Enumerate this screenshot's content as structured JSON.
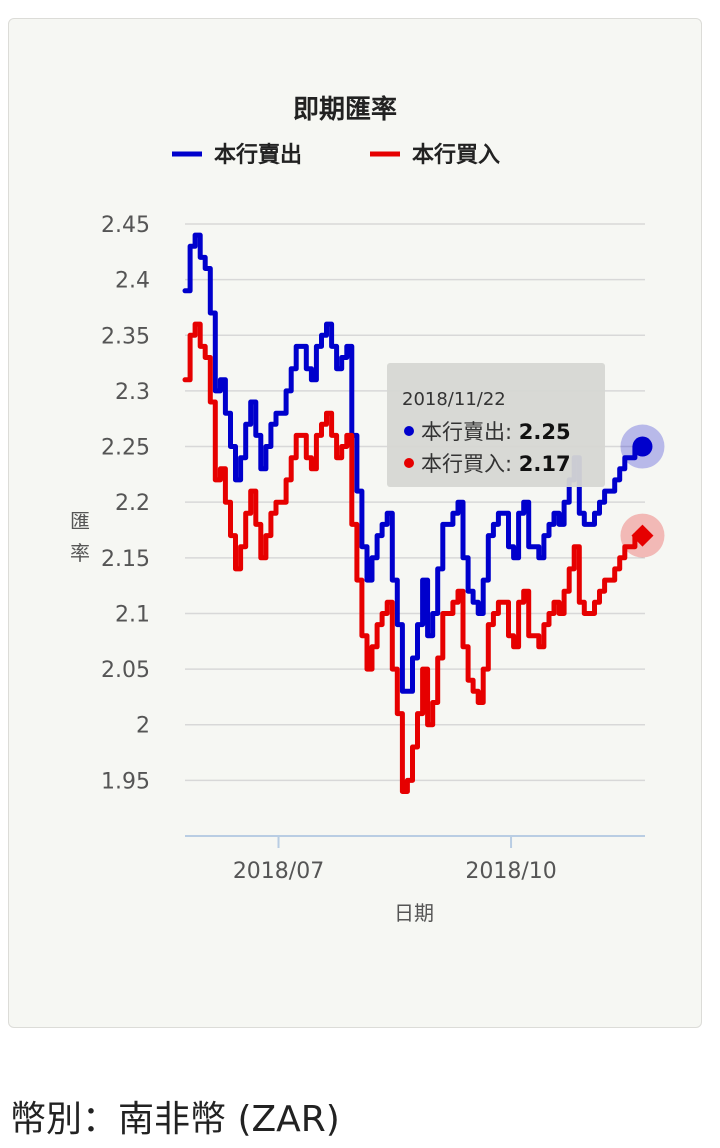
{
  "currency_label": "幣別：南非幣 (ZAR)",
  "colors": {
    "sell": "#0000cc",
    "buy": "#e60000",
    "grid": "#d8d8d8",
    "axis": "#b9cde3",
    "text": "#555555",
    "tooltip_bg": "#d9dad6"
  },
  "chart_data": {
    "type": "line",
    "title": "即期匯率",
    "xlabel": "日期",
    "ylabel": "匯率",
    "ylim": [
      1.9,
      2.45
    ],
    "yticks": [
      2.45,
      2.4,
      2.35,
      2.3,
      2.25,
      2.2,
      2.15,
      2.1,
      2.05,
      2.0,
      1.95
    ],
    "ytick_labels": [
      "2.45",
      "2.4",
      "2.35",
      "2.3",
      "2.25",
      "2.2",
      "2.15",
      "2.1",
      "2.05",
      "2",
      "1.95"
    ],
    "xlim": [
      "2018-05-25",
      "2018-11-23"
    ],
    "xticks": [
      {
        "date": "2018-07-01",
        "label": "2018/07"
      },
      {
        "date": "2018-10-01",
        "label": "2018/10"
      }
    ],
    "legend": "top",
    "grid": true,
    "series": [
      {
        "name": "本行賣出",
        "color": "#0000cc",
        "x": [
          "2018-05-25",
          "2018-05-27",
          "2018-05-29",
          "2018-05-31",
          "2018-06-02",
          "2018-06-04",
          "2018-06-06",
          "2018-06-08",
          "2018-06-10",
          "2018-06-12",
          "2018-06-14",
          "2018-06-16",
          "2018-06-18",
          "2018-06-20",
          "2018-06-22",
          "2018-06-24",
          "2018-06-26",
          "2018-06-28",
          "2018-06-30",
          "2018-07-02",
          "2018-07-04",
          "2018-07-06",
          "2018-07-08",
          "2018-07-10",
          "2018-07-12",
          "2018-07-14",
          "2018-07-16",
          "2018-07-18",
          "2018-07-20",
          "2018-07-22",
          "2018-07-24",
          "2018-07-26",
          "2018-07-28",
          "2018-07-30",
          "2018-08-01",
          "2018-08-03",
          "2018-08-05",
          "2018-08-07",
          "2018-08-09",
          "2018-08-11",
          "2018-08-13",
          "2018-08-15",
          "2018-08-17",
          "2018-08-19",
          "2018-08-21",
          "2018-08-23",
          "2018-08-25",
          "2018-08-27",
          "2018-08-29",
          "2018-08-31",
          "2018-09-02",
          "2018-09-04",
          "2018-09-06",
          "2018-09-08",
          "2018-09-10",
          "2018-09-12",
          "2018-09-14",
          "2018-09-16",
          "2018-09-18",
          "2018-09-20",
          "2018-09-22",
          "2018-09-24",
          "2018-09-26",
          "2018-09-28",
          "2018-09-30",
          "2018-10-02",
          "2018-10-04",
          "2018-10-06",
          "2018-10-08",
          "2018-10-10",
          "2018-10-12",
          "2018-10-14",
          "2018-10-16",
          "2018-10-18",
          "2018-10-20",
          "2018-10-22",
          "2018-10-24",
          "2018-10-26",
          "2018-10-28",
          "2018-10-30",
          "2018-11-01",
          "2018-11-03",
          "2018-11-05",
          "2018-11-07",
          "2018-11-09",
          "2018-11-11",
          "2018-11-13",
          "2018-11-15",
          "2018-11-17",
          "2018-11-19",
          "2018-11-22"
        ],
        "values": [
          2.39,
          2.43,
          2.44,
          2.42,
          2.41,
          2.37,
          2.3,
          2.31,
          2.28,
          2.25,
          2.22,
          2.24,
          2.27,
          2.29,
          2.26,
          2.23,
          2.25,
          2.27,
          2.28,
          2.28,
          2.3,
          2.32,
          2.34,
          2.34,
          2.32,
          2.31,
          2.34,
          2.35,
          2.36,
          2.34,
          2.32,
          2.33,
          2.34,
          2.26,
          2.21,
          2.16,
          2.13,
          2.15,
          2.17,
          2.18,
          2.19,
          2.13,
          2.09,
          2.03,
          2.03,
          2.06,
          2.09,
          2.13,
          2.08,
          2.1,
          2.14,
          2.18,
          2.18,
          2.19,
          2.2,
          2.15,
          2.12,
          2.11,
          2.1,
          2.13,
          2.17,
          2.18,
          2.19,
          2.19,
          2.16,
          2.15,
          2.19,
          2.2,
          2.16,
          2.16,
          2.15,
          2.17,
          2.18,
          2.19,
          2.18,
          2.2,
          2.22,
          2.24,
          2.19,
          2.18,
          2.18,
          2.19,
          2.2,
          2.21,
          2.21,
          2.22,
          2.23,
          2.24,
          2.24,
          2.25,
          2.25
        ]
      },
      {
        "name": "本行買入",
        "color": "#e60000",
        "x": [
          "2018-05-25",
          "2018-05-27",
          "2018-05-29",
          "2018-05-31",
          "2018-06-02",
          "2018-06-04",
          "2018-06-06",
          "2018-06-08",
          "2018-06-10",
          "2018-06-12",
          "2018-06-14",
          "2018-06-16",
          "2018-06-18",
          "2018-06-20",
          "2018-06-22",
          "2018-06-24",
          "2018-06-26",
          "2018-06-28",
          "2018-06-30",
          "2018-07-02",
          "2018-07-04",
          "2018-07-06",
          "2018-07-08",
          "2018-07-10",
          "2018-07-12",
          "2018-07-14",
          "2018-07-16",
          "2018-07-18",
          "2018-07-20",
          "2018-07-22",
          "2018-07-24",
          "2018-07-26",
          "2018-07-28",
          "2018-07-30",
          "2018-08-01",
          "2018-08-03",
          "2018-08-05",
          "2018-08-07",
          "2018-08-09",
          "2018-08-11",
          "2018-08-13",
          "2018-08-15",
          "2018-08-17",
          "2018-08-19",
          "2018-08-21",
          "2018-08-23",
          "2018-08-25",
          "2018-08-27",
          "2018-08-29",
          "2018-08-31",
          "2018-09-02",
          "2018-09-04",
          "2018-09-06",
          "2018-09-08",
          "2018-09-10",
          "2018-09-12",
          "2018-09-14",
          "2018-09-16",
          "2018-09-18",
          "2018-09-20",
          "2018-09-22",
          "2018-09-24",
          "2018-09-26",
          "2018-09-28",
          "2018-09-30",
          "2018-10-02",
          "2018-10-04",
          "2018-10-06",
          "2018-10-08",
          "2018-10-10",
          "2018-10-12",
          "2018-10-14",
          "2018-10-16",
          "2018-10-18",
          "2018-10-20",
          "2018-10-22",
          "2018-10-24",
          "2018-10-26",
          "2018-10-28",
          "2018-10-30",
          "2018-11-01",
          "2018-11-03",
          "2018-11-05",
          "2018-11-07",
          "2018-11-09",
          "2018-11-11",
          "2018-11-13",
          "2018-11-15",
          "2018-11-17",
          "2018-11-19",
          "2018-11-22"
        ],
        "values": [
          2.31,
          2.35,
          2.36,
          2.34,
          2.33,
          2.29,
          2.22,
          2.23,
          2.2,
          2.17,
          2.14,
          2.16,
          2.19,
          2.21,
          2.18,
          2.15,
          2.17,
          2.19,
          2.2,
          2.2,
          2.22,
          2.24,
          2.26,
          2.26,
          2.24,
          2.23,
          2.26,
          2.27,
          2.28,
          2.26,
          2.24,
          2.25,
          2.26,
          2.18,
          2.13,
          2.08,
          2.05,
          2.07,
          2.09,
          2.1,
          2.11,
          2.05,
          2.01,
          1.94,
          1.95,
          1.98,
          2.01,
          2.05,
          2.0,
          2.02,
          2.06,
          2.1,
          2.1,
          2.11,
          2.12,
          2.07,
          2.04,
          2.03,
          2.02,
          2.05,
          2.09,
          2.1,
          2.11,
          2.11,
          2.08,
          2.07,
          2.11,
          2.12,
          2.08,
          2.08,
          2.07,
          2.09,
          2.1,
          2.11,
          2.1,
          2.12,
          2.14,
          2.16,
          2.11,
          2.1,
          2.1,
          2.11,
          2.12,
          2.13,
          2.13,
          2.14,
          2.15,
          2.16,
          2.16,
          2.17,
          2.17
        ]
      }
    ],
    "tooltip": {
      "date": "2018/11/22",
      "entries": [
        {
          "name": "本行賣出",
          "value": "2.25"
        },
        {
          "name": "本行買入",
          "value": "2.17"
        }
      ]
    }
  }
}
